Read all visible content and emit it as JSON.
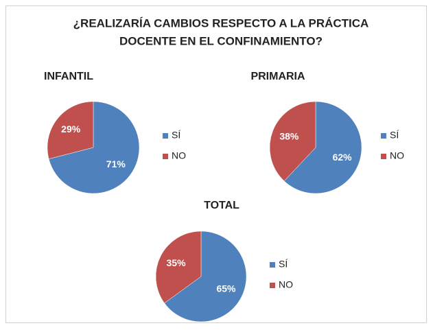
{
  "title": [
    "¿REALIZARÍA CAMBIOS RESPECTO A LA PRÁCTICA",
    "DOCENTE EN EL CONFINAMIENTO?"
  ],
  "chart_data": [
    {
      "type": "pie",
      "title": "INFANTIL",
      "categories": [
        "SÍ",
        "NO"
      ],
      "values": [
        71,
        29
      ],
      "value_labels": [
        "71%",
        "29%"
      ],
      "colors": [
        "#4f81bd",
        "#c0504d"
      ]
    },
    {
      "type": "pie",
      "title": "PRIMARIA",
      "categories": [
        "SÍ",
        "NO"
      ],
      "values": [
        62,
        38
      ],
      "value_labels": [
        "62%",
        "38%"
      ],
      "colors": [
        "#4f81bd",
        "#c0504d"
      ]
    },
    {
      "type": "pie",
      "title": "TOTAL",
      "categories": [
        "SÍ",
        "NO"
      ],
      "values": [
        65,
        35
      ],
      "value_labels": [
        "65%",
        "35%"
      ],
      "colors": [
        "#4f81bd",
        "#c0504d"
      ]
    }
  ]
}
